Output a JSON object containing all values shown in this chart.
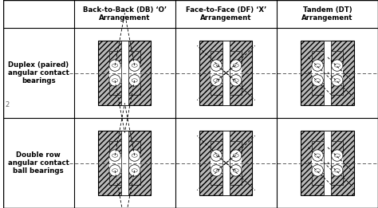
{
  "col_headers": [
    "Back-to-Back (DB) ‘O’\nArrangement",
    "Face-to-Face (DF) ‘X’\nArrangement",
    "Tandem (DT)\nArrangement"
  ],
  "row_headers": [
    "Duplex (paired)\nangular contact\nbearings",
    "Double row\nangular contact\nball bearings"
  ],
  "bg_color": "#ffffff",
  "grid_color": "#000000"
}
